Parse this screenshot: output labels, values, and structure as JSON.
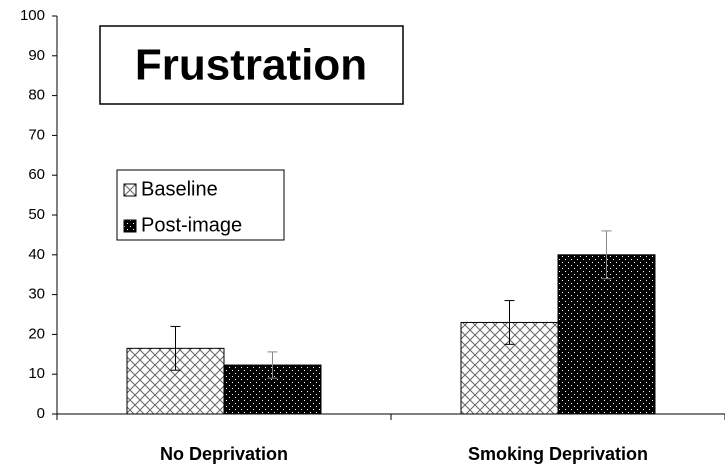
{
  "chart_data": {
    "type": "bar",
    "title": "Frustration",
    "categories": [
      "No Deprivation",
      "Smoking Deprivation"
    ],
    "series": [
      {
        "name": "Baseline",
        "color": "#ffffff",
        "pattern": "crosshatch",
        "values": [
          16.5,
          23
        ],
        "errors": [
          5.5,
          5.5
        ]
      },
      {
        "name": "Post-image",
        "color": "#000000",
        "pattern": "dots",
        "values": [
          12.3,
          40
        ],
        "errors": [
          3.3,
          6
        ]
      }
    ],
    "ylim": [
      0,
      100
    ],
    "yticks": [
      0,
      10,
      20,
      30,
      40,
      50,
      60,
      70,
      80,
      90,
      100
    ],
    "grid": false
  }
}
